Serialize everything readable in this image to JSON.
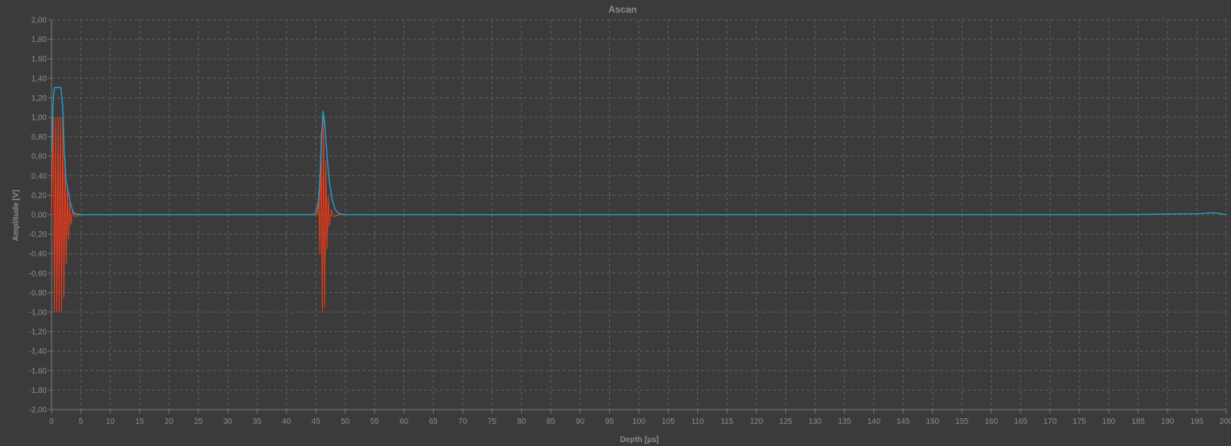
{
  "window": {
    "title": "Ascan"
  },
  "colors": {
    "background": "#3b3b3b",
    "plot_background": "#3b3b3b",
    "grid": "#5e5e5e",
    "axis": "#7a7a7a",
    "text": "#8c8c8c",
    "envelope": "#1ea7d6",
    "rf_signal": "#ea3a1a"
  },
  "chart_data": {
    "type": "line",
    "title": "Ascan",
    "xlabel": "Depth [µs]",
    "ylabel": "Amplitude [V]",
    "xlim": [
      0,
      200
    ],
    "ylim": [
      -2.0,
      2.0
    ],
    "x_ticks": [
      "0",
      "5",
      "10",
      "15",
      "20",
      "25",
      "30",
      "35",
      "40",
      "45",
      "50",
      "55",
      "60",
      "65",
      "70",
      "75",
      "80",
      "85",
      "90",
      "95",
      "100",
      "105",
      "110",
      "115",
      "120",
      "125",
      "130",
      "135",
      "140",
      "145",
      "150",
      "155",
      "160",
      "165",
      "170",
      "175",
      "180",
      "185",
      "190",
      "195",
      "200"
    ],
    "y_ticks": [
      "2,00",
      "1,80",
      "1,60",
      "1,40",
      "1,20",
      "1,00",
      "0,80",
      "0,60",
      "0,40",
      "0,20",
      "0,00",
      "-0,20",
      "-0,40",
      "-0,60",
      "-0,80",
      "-1,00",
      "-1,20",
      "-1,40",
      "-1,60",
      "-1,80",
      "-2,00"
    ],
    "grid": true,
    "legend": "none",
    "series": [
      {
        "color": "#1ea7d6",
        "x": [
          0,
          0.3,
          0.5,
          0.8,
          1.0,
          1.3,
          1.6,
          1.9,
          2.2,
          2.5,
          2.8,
          3.2,
          3.6,
          4.0,
          5.0,
          10,
          20,
          30,
          40,
          44.5,
          45.0,
          45.5,
          45.9,
          46.2,
          46.5,
          46.9,
          47.3,
          47.8,
          48.3,
          49.0,
          50.0,
          60,
          70,
          80,
          89,
          100,
          120,
          140,
          160,
          180,
          195,
          198,
          200
        ],
        "y": [
          0.65,
          1.2,
          1.3,
          1.31,
          1.3,
          1.31,
          1.3,
          1.1,
          0.6,
          0.33,
          0.25,
          0.12,
          0.04,
          0.01,
          0.0,
          0.0,
          0.0,
          0.0,
          0.0,
          0.0,
          0.02,
          0.15,
          0.65,
          1.06,
          0.95,
          0.6,
          0.33,
          0.15,
          0.05,
          0.01,
          0.0,
          0.0,
          0.0,
          0.0,
          0.0,
          0.0,
          0.0,
          0.0,
          0.0,
          0.0,
          0.01,
          0.02,
          0.0
        ]
      },
      {
        "color": "#ea3a1a",
        "x": [
          0,
          0.3,
          0.5,
          0.7,
          0.9,
          1.1,
          1.3,
          1.5,
          1.7,
          1.9,
          2.1,
          2.3,
          2.5,
          2.7,
          2.9,
          3.1,
          3.3,
          3.6,
          4.0,
          5.0,
          20,
          40,
          45.3,
          45.5,
          45.7,
          45.9,
          46.1,
          46.3,
          46.5,
          46.7,
          46.9,
          47.1,
          47.3,
          47.6,
          48.0,
          49.0,
          60,
          80,
          89
        ],
        "y": [
          0.0,
          1.0,
          -1.0,
          1.0,
          -1.0,
          1.0,
          -1.0,
          1.0,
          -1.0,
          1.0,
          -0.85,
          0.6,
          -0.5,
          0.3,
          -0.25,
          0.12,
          -0.1,
          0.04,
          -0.02,
          0.0,
          0.0,
          0.0,
          0.0,
          0.25,
          -0.4,
          0.85,
          -1.0,
          1.0,
          -0.95,
          0.55,
          -0.35,
          0.2,
          -0.12,
          0.05,
          -0.02,
          0.0,
          0.0,
          0.0,
          0.0
        ]
      }
    ]
  }
}
